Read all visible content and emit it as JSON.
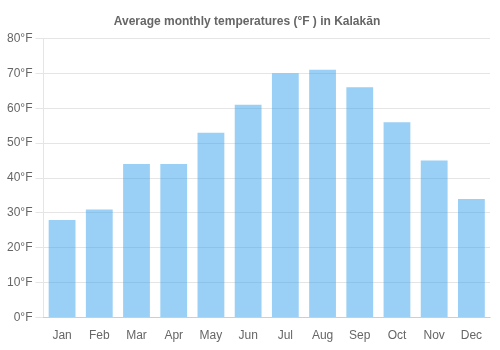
{
  "chart_data": {
    "type": "bar",
    "title": "Average monthly temperatures (°F ) in Kalakān",
    "categories": [
      "Jan",
      "Feb",
      "Mar",
      "Apr",
      "May",
      "Jun",
      "Jul",
      "Aug",
      "Sep",
      "Oct",
      "Nov",
      "Dec"
    ],
    "values": [
      28,
      31,
      44,
      44,
      53,
      61,
      70,
      71,
      66,
      56,
      45,
      34
    ],
    "ylim": [
      0,
      80
    ],
    "yticks": [
      {
        "value": 0,
        "label": "0°F"
      },
      {
        "value": 10,
        "label": "10°F"
      },
      {
        "value": 20,
        "label": "20°F"
      },
      {
        "value": 30,
        "label": "30°F"
      },
      {
        "value": 40,
        "label": "40°F"
      },
      {
        "value": 50,
        "label": "50°F"
      },
      {
        "value": 60,
        "label": "60°F"
      },
      {
        "value": 70,
        "label": "70°F"
      },
      {
        "value": 80,
        "label": "80°F"
      }
    ],
    "grid": true
  }
}
